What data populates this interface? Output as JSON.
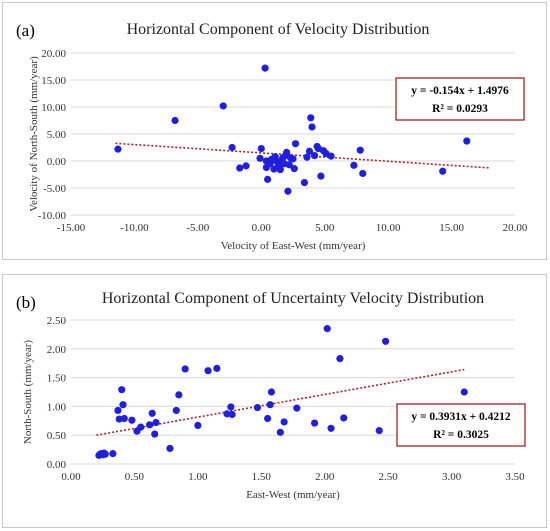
{
  "chart_data": [
    {
      "type": "scatter",
      "panel_label": "(a)",
      "title": "Horizontal Component of Velocity Distribution",
      "xlabel": "Velocity of East-West  (mm/year)",
      "ylabel": "Velocity of North-South  (mm/year)",
      "xlim": [
        -15,
        20
      ],
      "ylim": [
        -10,
        20
      ],
      "xticks": [
        "-15.00",
        "-10.00",
        "-5.00",
        "0.00",
        "5.00",
        "10.00",
        "15.00",
        "20.00"
      ],
      "yticks": [
        "-10.00",
        "-5.00",
        "0.00",
        "5.00",
        "10.00",
        "15.00",
        "20.00"
      ],
      "grid": true,
      "trendline": {
        "slope": -0.154,
        "intercept": 1.4976,
        "x_range": [
          -11.5,
          18
        ]
      },
      "equation": "y = -0.154x + 1.4976",
      "r2": "R² = 0.0293",
      "x": [
        -11.3,
        -6.8,
        -3.0,
        -2.3,
        -1.7,
        -1.2,
        -0.1,
        0.0,
        0.3,
        0.4,
        0.4,
        0.5,
        0.7,
        0.8,
        1.0,
        1.1,
        1.2,
        1.3,
        1.4,
        1.5,
        1.6,
        1.7,
        1.8,
        1.9,
        2.0,
        2.1,
        2.2,
        2.3,
        2.5,
        2.6,
        2.7,
        3.4,
        3.6,
        3.8,
        3.9,
        4.0,
        4.2,
        4.4,
        4.5,
        4.7,
        4.9,
        5.1,
        5.5,
        7.3,
        7.8,
        8.0,
        14.3,
        16.2
      ],
      "y": [
        2.2,
        7.5,
        10.2,
        2.5,
        -1.3,
        -0.9,
        0.5,
        2.3,
        17.2,
        0.0,
        -1.2,
        -3.4,
        -0.5,
        0.3,
        -1.5,
        0.8,
        0.0,
        -1.1,
        -0.8,
        -1.6,
        0.1,
        0.6,
        -0.5,
        1.0,
        1.6,
        -5.6,
        -0.7,
        0.6,
        0.4,
        -1.4,
        3.2,
        -4.0,
        0.7,
        1.8,
        8.0,
        6.3,
        1.0,
        2.7,
        2.3,
        -2.8,
        1.9,
        1.4,
        0.9,
        -0.8,
        2.0,
        -2.3,
        -1.9,
        3.7
      ]
    },
    {
      "type": "scatter",
      "panel_label": "(b)",
      "title": "Horizontal Component of Uncertainty Velocity Distribution",
      "xlabel": "East-West (mm/year)",
      "ylabel": "North-South (mm/year)",
      "xlim": [
        0,
        3.5
      ],
      "ylim": [
        0,
        2.5
      ],
      "xticks": [
        "0.00",
        "0.50",
        "1.00",
        "1.50",
        "2.00",
        "2.50",
        "3.00",
        "3.50"
      ],
      "yticks": [
        "0.00",
        "0.50",
        "1.00",
        "1.50",
        "2.00",
        "2.50"
      ],
      "grid": true,
      "trendline": {
        "slope": 0.3931,
        "intercept": 0.4212,
        "x_range": [
          0.2,
          3.1
        ]
      },
      "equation": "y = 0.3931x + 0.4212",
      "r2": "R² = 0.3025",
      "x": [
        0.22,
        0.23,
        0.24,
        0.25,
        0.26,
        0.27,
        0.33,
        0.37,
        0.38,
        0.4,
        0.41,
        0.42,
        0.48,
        0.52,
        0.55,
        0.62,
        0.64,
        0.66,
        0.67,
        0.78,
        0.83,
        0.85,
        0.9,
        1.0,
        1.08,
        1.15,
        1.23,
        1.26,
        1.27,
        1.47,
        1.55,
        1.57,
        1.58,
        1.65,
        1.68,
        1.78,
        1.92,
        2.02,
        2.05,
        2.12,
        2.15,
        2.43,
        2.48,
        3.1
      ],
      "y": [
        0.15,
        0.17,
        0.18,
        0.16,
        0.19,
        0.17,
        0.18,
        0.93,
        0.78,
        1.29,
        1.03,
        0.79,
        0.76,
        0.57,
        0.64,
        0.68,
        0.88,
        0.52,
        0.72,
        0.27,
        0.93,
        1.2,
        1.65,
        0.67,
        1.62,
        1.66,
        0.87,
        0.99,
        0.86,
        0.98,
        0.79,
        1.03,
        1.25,
        0.55,
        0.73,
        0.97,
        0.71,
        2.35,
        0.62,
        1.83,
        0.8,
        0.58,
        2.13,
        1.25
      ]
    }
  ],
  "colors": {
    "points": "#1f1fe0",
    "trendline": "#b22222",
    "grid": "#d9d9d9",
    "eqbox": "#a01010"
  }
}
